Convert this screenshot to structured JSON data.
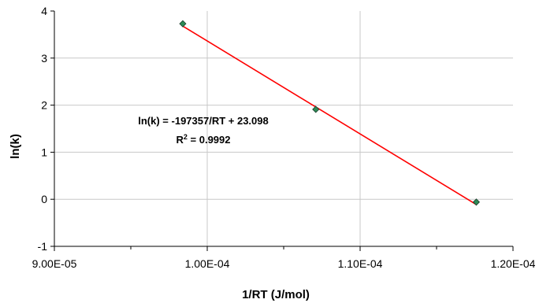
{
  "chart_data": {
    "type": "scatter",
    "xlabel": "1/RT (J/mol)",
    "ylabel": "ln(k)",
    "xlim": [
      9e-05,
      0.00012
    ],
    "ylim": [
      -1,
      4
    ],
    "x_ticks": [
      9e-05,
      0.0001,
      0.00011,
      0.00012
    ],
    "x_tick_labels": [
      "9.00E-05",
      "1.00E-04",
      "1.10E-04",
      "1.20E-04"
    ],
    "y_ticks": [
      -1,
      0,
      1,
      2,
      3,
      4
    ],
    "y_tick_labels": [
      "-1",
      "0",
      "1",
      "2",
      "3",
      "4"
    ],
    "grid": true,
    "series": [
      {
        "kind": "points",
        "marker": "diamond",
        "color": "#2e8b57",
        "x": [
          9.84e-05,
          0.0001071,
          0.0001176
        ],
        "y": [
          3.73,
          1.91,
          -0.06
        ]
      },
      {
        "kind": "trendline",
        "color": "#ff0000",
        "x": [
          9.84e-05,
          0.0001176
        ],
        "y": [
          3.679,
          -0.112
        ]
      }
    ],
    "annotation": {
      "equation": "ln(k) = -197357/RT + 23.098",
      "r2_prefix": "R",
      "r2_sup": "2",
      "r2_suffix": " = 0.9992"
    }
  }
}
